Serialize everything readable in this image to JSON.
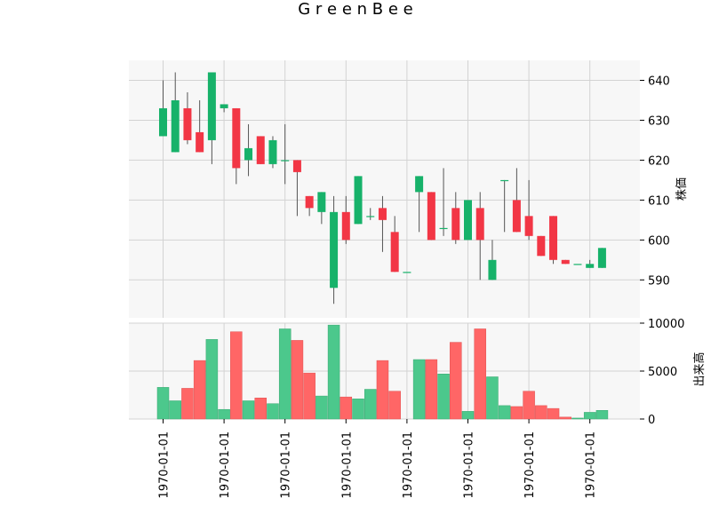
{
  "chart_data": {
    "type": "candlestick",
    "title": "G r e e n B e e",
    "price_axis": {
      "label": "株価",
      "ticks": [
        590,
        600,
        610,
        620,
        630,
        640
      ],
      "range": [
        580.5,
        645
      ]
    },
    "volume_axis": {
      "label": "出来高",
      "ticks": [
        0,
        5000,
        10000
      ],
      "range": [
        0,
        10000
      ]
    },
    "x_tick_labels": [
      "1970-01-01",
      "1970-01-01",
      "1970-01-01",
      "1970-01-01",
      "1970-01-01",
      "1970-01-01",
      "1970-01-01",
      "1970-01-01"
    ],
    "x_tick_positions": [
      0,
      5,
      10,
      15,
      20,
      25,
      30,
      35
    ],
    "grid": true,
    "colors": {
      "up": "#17b26a",
      "down": "#f23645",
      "up_volume": "#4cc88c",
      "down_volume": "#ff6666",
      "wick": "#555555",
      "panel_bg": "#f7f7f7",
      "grid": "#d3d3d3"
    },
    "candles": [
      {
        "open": 626,
        "high": 640,
        "low": 626,
        "close": 633,
        "volume": 3300
      },
      {
        "open": 622,
        "high": 642,
        "low": 622,
        "close": 635,
        "volume": 1900
      },
      {
        "open": 633,
        "high": 637,
        "low": 624,
        "close": 625,
        "volume": 3200
      },
      {
        "open": 627,
        "high": 635,
        "low": 622,
        "close": 622,
        "volume": 6100
      },
      {
        "open": 625,
        "high": 642,
        "low": 619,
        "close": 642,
        "volume": 8300
      },
      {
        "open": 633,
        "high": 634,
        "low": 632,
        "close": 634,
        "volume": 1000
      },
      {
        "open": 633,
        "high": 633,
        "low": 614,
        "close": 618,
        "volume": 9100
      },
      {
        "open": 620,
        "high": 629,
        "low": 616,
        "close": 623,
        "volume": 1900
      },
      {
        "open": 626,
        "high": 626,
        "low": 619,
        "close": 619,
        "volume": 2200
      },
      {
        "open": 619,
        "high": 626,
        "low": 618,
        "close": 625,
        "volume": 1600
      },
      {
        "open": 620,
        "high": 629,
        "low": 614,
        "close": 620,
        "volume": 9400
      },
      {
        "open": 620,
        "high": 620,
        "low": 606,
        "close": 617,
        "volume": 8200
      },
      {
        "open": 611,
        "high": 611,
        "low": 606,
        "close": 608,
        "volume": 4800
      },
      {
        "open": 607,
        "high": 612,
        "low": 604,
        "close": 612,
        "volume": 2400
      },
      {
        "open": 588,
        "high": 611,
        "low": 584,
        "close": 607,
        "volume": 9800
      },
      {
        "open": 607,
        "high": 611,
        "low": 599,
        "close": 600,
        "volume": 2300
      },
      {
        "open": 604,
        "high": 616,
        "low": 604,
        "close": 616,
        "volume": 2100
      },
      {
        "open": 606,
        "high": 608,
        "low": 605,
        "close": 606,
        "volume": 3100
      },
      {
        "open": 608,
        "high": 611,
        "low": 597,
        "close": 605,
        "volume": 6100
      },
      {
        "open": 602,
        "high": 606,
        "low": 592,
        "close": 592,
        "volume": 2900
      },
      {
        "open": 592,
        "high": 592,
        "low": 592,
        "close": 592,
        "volume": 0
      },
      {
        "open": 612,
        "high": 616,
        "low": 602,
        "close": 616,
        "volume": 6200
      },
      {
        "open": 612,
        "high": 612,
        "low": 600,
        "close": 600,
        "volume": 6200
      },
      {
        "open": 603,
        "high": 618,
        "low": 601,
        "close": 603,
        "volume": 4700
      },
      {
        "open": 608,
        "high": 612,
        "low": 599,
        "close": 600,
        "volume": 8000
      },
      {
        "open": 600,
        "high": 610,
        "low": 600,
        "close": 610,
        "volume": 800
      },
      {
        "open": 608,
        "high": 612,
        "low": 590,
        "close": 600,
        "volume": 9400
      },
      {
        "open": 590,
        "high": 600,
        "low": 590,
        "close": 595,
        "volume": 4400
      },
      {
        "open": 615,
        "high": 615,
        "low": 602,
        "close": 615,
        "volume": 1400
      },
      {
        "open": 610,
        "high": 618,
        "low": 602,
        "close": 602,
        "volume": 1300
      },
      {
        "open": 606,
        "high": 615,
        "low": 600,
        "close": 601,
        "volume": 2900
      },
      {
        "open": 601,
        "high": 601,
        "low": 596,
        "close": 596,
        "volume": 1400
      },
      {
        "open": 606,
        "high": 606,
        "low": 594,
        "close": 595,
        "volume": 1100
      },
      {
        "open": 595,
        "high": 595,
        "low": 594,
        "close": 594,
        "volume": 200
      },
      {
        "open": 594,
        "high": 594,
        "low": 594,
        "close": 594,
        "volume": 100
      },
      {
        "open": 593,
        "high": 595,
        "low": 593,
        "close": 594,
        "volume": 700
      },
      {
        "open": 593,
        "high": 598,
        "low": 593,
        "close": 598,
        "volume": 900
      }
    ]
  }
}
